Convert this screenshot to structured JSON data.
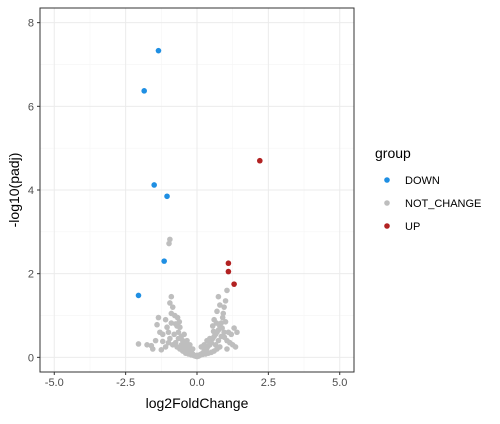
{
  "chart_data": {
    "type": "scatter",
    "title": "",
    "xlabel": "log2FoldChange",
    "ylabel": "-log10(padj)",
    "xlim": [
      -5.5,
      5.5
    ],
    "ylim": [
      -0.35,
      8.35
    ],
    "x_ticks": [
      -5,
      -2.5,
      0,
      2.5,
      5
    ],
    "x_tick_labels": [
      "-5.0",
      "-2.5",
      "0.0",
      "2.5",
      "5.0"
    ],
    "y_ticks": [
      0,
      2,
      4,
      6,
      8
    ],
    "y_tick_labels": [
      "0",
      "2",
      "4",
      "6",
      "8"
    ],
    "grid": true,
    "legend_position": "right",
    "legend": {
      "title": "group",
      "entries": [
        "DOWN",
        "NOT_CHANGE",
        "UP"
      ]
    },
    "colors": {
      "DOWN": "#1f8fe3",
      "NOT_CHANGE": "#bebebe",
      "UP": "#b22222",
      "panel_border": "#333333",
      "grid_major": "#ebebeb",
      "grid_minor": "#f5f5f5"
    },
    "series": [
      {
        "name": "DOWN",
        "points": [
          [
            -1.35,
            7.33
          ],
          [
            -1.85,
            6.37
          ],
          [
            -1.5,
            4.12
          ],
          [
            -1.05,
            3.85
          ],
          [
            -1.15,
            2.3
          ],
          [
            -2.05,
            1.48
          ]
        ]
      },
      {
        "name": "NOT_CHANGE",
        "points": [
          [
            -0.95,
            2.82
          ],
          [
            -0.98,
            2.72
          ],
          [
            -0.9,
            1.45
          ],
          [
            -0.95,
            1.3
          ],
          [
            -0.85,
            1.2
          ],
          [
            -1.35,
            0.95
          ],
          [
            -1.4,
            0.78
          ],
          [
            -1.3,
            0.6
          ],
          [
            -1.45,
            0.4
          ],
          [
            -1.6,
            0.28
          ],
          [
            -1.75,
            0.3
          ],
          [
            -2.05,
            0.32
          ],
          [
            -1.55,
            0.2
          ],
          [
            -1.2,
            0.55
          ],
          [
            -1.1,
            0.9
          ],
          [
            -1.05,
            0.72
          ],
          [
            -0.9,
            0.82
          ],
          [
            -0.75,
            0.8
          ],
          [
            -0.7,
            0.75
          ],
          [
            -0.65,
            0.6
          ],
          [
            -0.6,
            0.72
          ],
          [
            -0.55,
            0.5
          ],
          [
            -0.5,
            0.4
          ],
          [
            -0.45,
            0.55
          ],
          [
            -0.4,
            0.3
          ],
          [
            -0.35,
            0.25
          ],
          [
            -0.3,
            0.2
          ],
          [
            -0.25,
            0.15
          ],
          [
            -0.2,
            0.1
          ],
          [
            -0.15,
            0.08
          ],
          [
            -0.1,
            0.05
          ],
          [
            -0.05,
            0.03
          ],
          [
            0.0,
            0.02
          ],
          [
            0.05,
            0.03
          ],
          [
            0.1,
            0.05
          ],
          [
            0.15,
            0.08
          ],
          [
            0.2,
            0.1
          ],
          [
            0.25,
            0.15
          ],
          [
            0.3,
            0.2
          ],
          [
            0.35,
            0.22
          ],
          [
            0.4,
            0.28
          ],
          [
            0.45,
            0.3
          ],
          [
            0.5,
            0.35
          ],
          [
            0.55,
            0.45
          ],
          [
            0.6,
            0.5
          ],
          [
            0.65,
            0.55
          ],
          [
            0.7,
            0.6
          ],
          [
            0.75,
            0.65
          ],
          [
            0.8,
            0.75
          ],
          [
            0.85,
            0.82
          ],
          [
            0.9,
            0.95
          ],
          [
            0.95,
            1.2
          ],
          [
            1.0,
            1.35
          ],
          [
            0.92,
            1.05
          ],
          [
            0.88,
            0.7
          ],
          [
            0.96,
            0.48
          ],
          [
            1.05,
            0.4
          ],
          [
            1.15,
            0.35
          ],
          [
            1.25,
            0.3
          ],
          [
            1.35,
            0.25
          ],
          [
            1.2,
            0.55
          ],
          [
            1.3,
            0.7
          ],
          [
            1.1,
            0.6
          ],
          [
            1.0,
            0.85
          ],
          [
            0.75,
            1.45
          ],
          [
            0.8,
            1.25
          ],
          [
            0.7,
            1.1
          ],
          [
            0.6,
            0.9
          ],
          [
            0.55,
            0.75
          ],
          [
            1.05,
            1.6
          ],
          [
            1.4,
            0.6
          ],
          [
            -0.8,
            0.55
          ],
          [
            -0.85,
            0.3
          ],
          [
            -0.7,
            0.25
          ],
          [
            -0.6,
            0.2
          ],
          [
            -0.5,
            0.15
          ],
          [
            -0.4,
            0.1
          ],
          [
            -0.3,
            0.08
          ],
          [
            -0.2,
            0.06
          ],
          [
            -0.1,
            0.04
          ],
          [
            0.0,
            0.05
          ],
          [
            0.1,
            0.06
          ],
          [
            0.2,
            0.07
          ],
          [
            0.3,
            0.08
          ],
          [
            0.4,
            0.1
          ],
          [
            0.5,
            0.12
          ],
          [
            0.6,
            0.15
          ],
          [
            0.7,
            0.2
          ],
          [
            0.8,
            0.25
          ],
          [
            -0.95,
            0.45
          ],
          [
            -1.0,
            0.35
          ],
          [
            -1.1,
            0.25
          ],
          [
            -1.25,
            0.18
          ],
          [
            -0.75,
            0.35
          ],
          [
            -0.65,
            0.45
          ],
          [
            -0.55,
            0.3
          ],
          [
            -0.45,
            0.2
          ],
          [
            -0.35,
            0.4
          ],
          [
            -0.25,
            0.3
          ],
          [
            -0.15,
            0.2
          ],
          [
            0.15,
            0.25
          ],
          [
            0.25,
            0.3
          ],
          [
            0.35,
            0.4
          ],
          [
            0.45,
            0.45
          ],
          [
            0.65,
            0.3
          ],
          [
            0.75,
            0.4
          ],
          [
            0.85,
            0.5
          ],
          [
            0.95,
            0.6
          ],
          [
            1.05,
            0.2
          ],
          [
            -1.2,
            0.38
          ],
          [
            -0.9,
            1.05
          ],
          [
            -0.78,
            1.0
          ],
          [
            -1.0,
            0.6
          ],
          [
            -0.68,
            0.95
          ],
          [
            -0.62,
            0.85
          ],
          [
            0.58,
            0.62
          ],
          [
            0.68,
            0.82
          ]
        ]
      },
      {
        "name": "UP",
        "points": [
          [
            2.2,
            4.7
          ],
          [
            1.1,
            2.25
          ],
          [
            1.1,
            2.05
          ],
          [
            1.3,
            1.75
          ]
        ]
      }
    ]
  }
}
